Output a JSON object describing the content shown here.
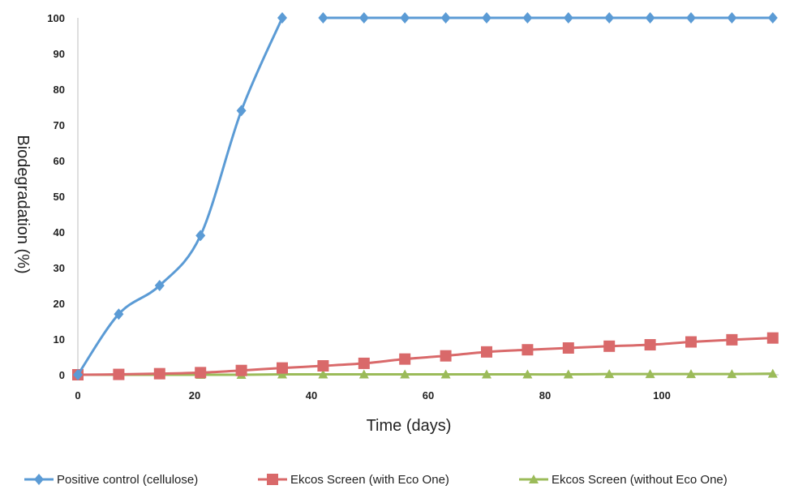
{
  "chart_data": {
    "type": "line",
    "title": "",
    "xlabel": "Time (days)",
    "ylabel": "Biodegradation (%)",
    "xlim": [
      0,
      120
    ],
    "ylim": [
      0,
      100
    ],
    "xticks": [
      "0",
      "20",
      "40",
      "60",
      "80",
      "100"
    ],
    "yticks": [
      "0",
      "10",
      "20",
      "30",
      "40",
      "50",
      "60",
      "70",
      "80",
      "90",
      "100"
    ],
    "grid": false,
    "legend_position": "bottom",
    "series": [
      {
        "name": "Positive control (cellulose)",
        "color": "#5b9bd5",
        "marker": "diamond",
        "segments": [
          [
            [
              0,
              0
            ],
            [
              7,
              17
            ],
            [
              14,
              25
            ],
            [
              21,
              39
            ],
            [
              28,
              74
            ],
            [
              35,
              100
            ]
          ],
          [
            [
              42,
              100
            ],
            [
              49,
              100
            ],
            [
              56,
              100
            ],
            [
              63,
              100
            ],
            [
              70,
              100
            ],
            [
              77,
              100
            ],
            [
              84,
              100
            ],
            [
              91,
              100
            ],
            [
              98,
              100
            ],
            [
              105,
              100
            ],
            [
              112,
              100
            ],
            [
              119,
              100
            ]
          ]
        ]
      },
      {
        "name": "Ekcos Screen (with Eco One)",
        "color": "#d9696a",
        "marker": "square",
        "segments": [
          [
            [
              0,
              0
            ],
            [
              7,
              0.1
            ],
            [
              14,
              0.3
            ],
            [
              21,
              0.6
            ],
            [
              28,
              1.2
            ],
            [
              35,
              1.9
            ],
            [
              42,
              2.5
            ],
            [
              49,
              3.2
            ],
            [
              56,
              4.4
            ],
            [
              63,
              5.3
            ],
            [
              70,
              6.4
            ],
            [
              77,
              7
            ],
            [
              84,
              7.5
            ],
            [
              91,
              8
            ],
            [
              98,
              8.4
            ],
            [
              105,
              9.2
            ],
            [
              112,
              9.8
            ],
            [
              119,
              10.3
            ]
          ]
        ]
      },
      {
        "name": "Ekcos Screen (without Eco One)",
        "color": "#9bbb59",
        "marker": "triangle",
        "segments": [
          [
            [
              0,
              0
            ],
            [
              7,
              0
            ],
            [
              14,
              0
            ],
            [
              21,
              0
            ],
            [
              28,
              0
            ],
            [
              35,
              0.1
            ],
            [
              42,
              0.1
            ],
            [
              49,
              0.1
            ],
            [
              56,
              0.1
            ],
            [
              63,
              0.1
            ],
            [
              70,
              0.1
            ],
            [
              77,
              0.1
            ],
            [
              84,
              0.1
            ],
            [
              91,
              0.2
            ],
            [
              98,
              0.2
            ],
            [
              105,
              0.2
            ],
            [
              112,
              0.2
            ],
            [
              119,
              0.3
            ]
          ]
        ]
      }
    ]
  }
}
